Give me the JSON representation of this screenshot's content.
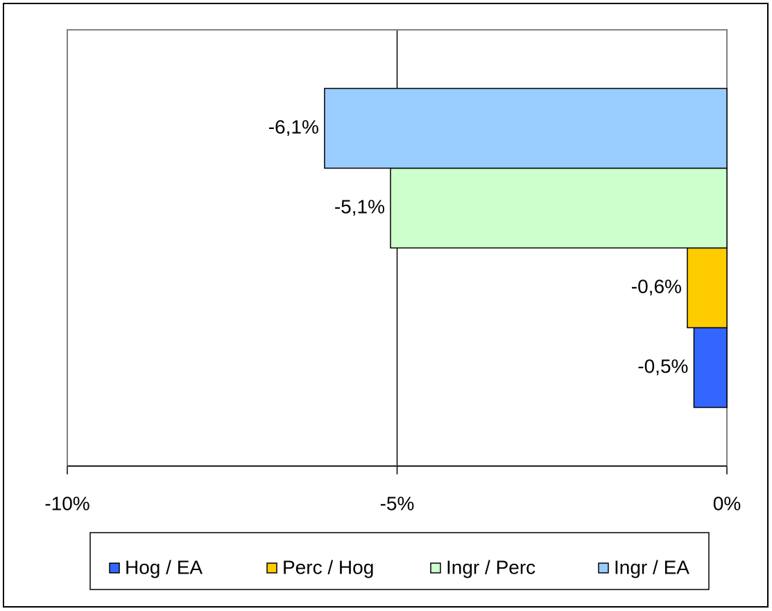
{
  "chart_data": {
    "type": "bar",
    "orientation": "horizontal",
    "series": [
      {
        "name": "Hog / EA",
        "color": "#3366ff",
        "values": [
          -0.5
        ],
        "value_labels": [
          "-0,5%"
        ]
      },
      {
        "name": "Perc / Hog",
        "color": "#ffcc00",
        "values": [
          -0.6
        ],
        "value_labels": [
          "-0,6%"
        ]
      },
      {
        "name": "Ingr / Perc",
        "color": "#ccffcc",
        "values": [
          -5.1
        ],
        "value_labels": [
          "-5,1%"
        ]
      },
      {
        "name": "Ingr / EA",
        "color": "#99ccff",
        "values": [
          -6.1
        ],
        "value_labels": [
          "-6,1%"
        ]
      }
    ],
    "xlim": [
      -10,
      0
    ],
    "xticks": [
      {
        "value": -10,
        "label": "-10%"
      },
      {
        "value": -5,
        "label": "-5%"
      },
      {
        "value": 0,
        "label": "0%"
      }
    ],
    "grid": true,
    "legend": "bottom"
  }
}
